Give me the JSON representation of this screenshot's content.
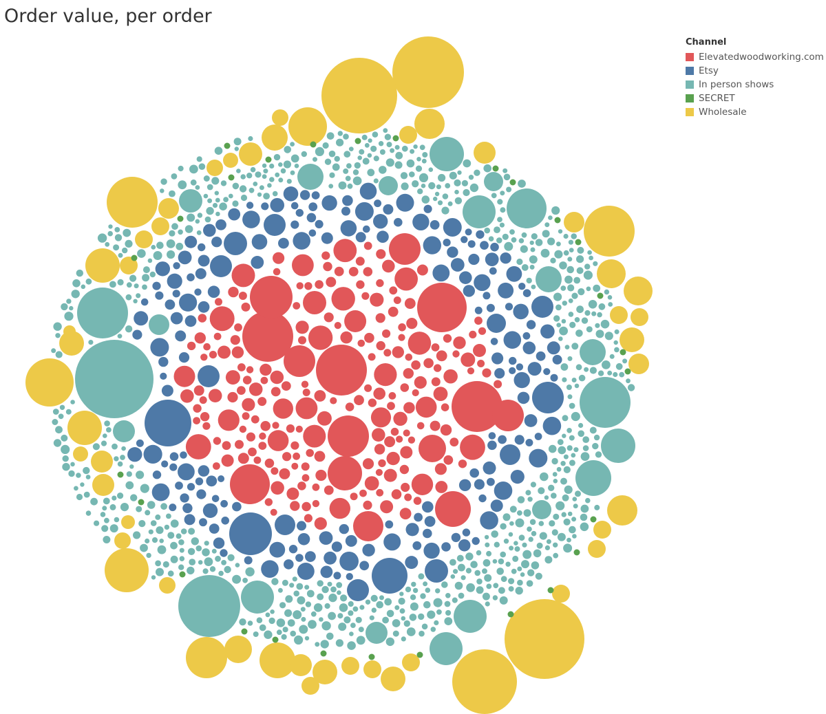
{
  "chart_data": {
    "type": "bubble",
    "title": "Order value, per order",
    "legend": {
      "title": "Channel",
      "placement": "top-right",
      "entries": [
        {
          "name": "Elevatedwoodworking.com",
          "color": "#e15759"
        },
        {
          "name": "Etsy",
          "color": "#4e79a7"
        },
        {
          "name": "In person shows",
          "color": "#76b7b2"
        },
        {
          "name": "SECRET",
          "color": "#59a14f"
        },
        {
          "name": "Wholesale",
          "color": "#edc948"
        }
      ]
    }
  }
}
